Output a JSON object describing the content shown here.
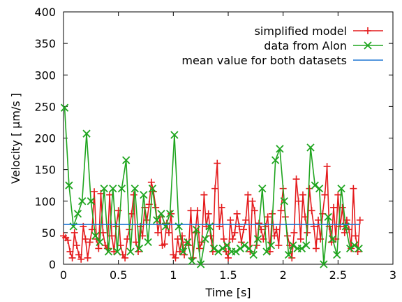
{
  "chart_data": {
    "type": "line",
    "xlabel": "Time [s]",
    "ylabel": "Velocity [ μm/s ]",
    "xlim": [
      0,
      3
    ],
    "ylim": [
      0,
      400
    ],
    "xticks": [
      0,
      0.5,
      1,
      1.5,
      2,
      2.5,
      3
    ],
    "xtick_labels": [
      "0",
      "0.5",
      "1",
      "1.5",
      "2",
      "2.5",
      "3"
    ],
    "yticks": [
      0,
      50,
      100,
      150,
      200,
      250,
      300,
      350,
      400
    ],
    "ytick_labels": [
      "0",
      "50",
      "100",
      "150",
      "200",
      "250",
      "300",
      "350",
      "400"
    ],
    "legend_position": "top-right",
    "grid": false,
    "series": [
      {
        "name": "simplified model",
        "color": "#e41a1c",
        "marker": "plus",
        "x": [
          0.0,
          0.02,
          0.04,
          0.06,
          0.08,
          0.1,
          0.12,
          0.14,
          0.16,
          0.18,
          0.2,
          0.22,
          0.24,
          0.26,
          0.28,
          0.3,
          0.32,
          0.34,
          0.36,
          0.38,
          0.4,
          0.42,
          0.44,
          0.46,
          0.48,
          0.5,
          0.52,
          0.54,
          0.56,
          0.58,
          0.6,
          0.62,
          0.64,
          0.66,
          0.68,
          0.7,
          0.72,
          0.74,
          0.76,
          0.78,
          0.8,
          0.82,
          0.84,
          0.86,
          0.88,
          0.9,
          0.92,
          0.94,
          0.96,
          0.98,
          1.0,
          1.02,
          1.04,
          1.06,
          1.08,
          1.1,
          1.12,
          1.14,
          1.16,
          1.18,
          1.2,
          1.22,
          1.24,
          1.26,
          1.28,
          1.3,
          1.32,
          1.34,
          1.36,
          1.38,
          1.4,
          1.42,
          1.44,
          1.46,
          1.48,
          1.5,
          1.52,
          1.54,
          1.56,
          1.58,
          1.6,
          1.62,
          1.64,
          1.66,
          1.68,
          1.7,
          1.72,
          1.74,
          1.76,
          1.78,
          1.8,
          1.82,
          1.84,
          1.86,
          1.88,
          1.9,
          1.92,
          1.94,
          1.96,
          1.98,
          2.0,
          2.02,
          2.04,
          2.06,
          2.08,
          2.1,
          2.12,
          2.14,
          2.16,
          2.18,
          2.2,
          2.22,
          2.24,
          2.26,
          2.28,
          2.3,
          2.32,
          2.34,
          2.36,
          2.38,
          2.4,
          2.42,
          2.44,
          2.46,
          2.48,
          2.5,
          2.52,
          2.54,
          2.56,
          2.58,
          2.6,
          2.62,
          2.64,
          2.66,
          2.68,
          2.7
        ],
        "values": [
          45,
          42,
          38,
          20,
          10,
          50,
          30,
          15,
          8,
          60,
          40,
          10,
          35,
          55,
          115,
          40,
          25,
          112,
          50,
          30,
          25,
          110,
          45,
          20,
          60,
          85,
          30,
          15,
          10,
          40,
          55,
          80,
          110,
          35,
          20,
          60,
          45,
          90,
          70,
          95,
          130,
          115,
          90,
          50,
          75,
          30,
          32,
          65,
          50,
          80,
          15,
          10,
          40,
          20,
          45,
          15,
          35,
          30,
          85,
          10,
          50,
          85,
          25,
          35,
          110,
          60,
          80,
          45,
          20,
          120,
          160,
          60,
          90,
          40,
          20,
          10,
          70,
          40,
          50,
          80,
          60,
          35,
          55,
          70,
          110,
          20,
          100,
          85,
          30,
          65,
          55,
          40,
          60,
          75,
          20,
          80,
          45,
          55,
          30,
          85,
          120,
          75,
          45,
          30,
          10,
          50,
          135,
          100,
          40,
          110,
          75,
          50,
          120,
          85,
          60,
          25,
          70,
          40,
          80,
          110,
          155,
          60,
          35,
          90,
          40,
          110,
          60,
          90,
          50,
          70,
          55,
          25,
          120,
          45,
          20,
          70
        ]
      },
      {
        "name": "data from Alon",
        "color": "#1fa51f",
        "marker": "cross",
        "x": [
          0.01,
          0.05,
          0.09,
          0.13,
          0.17,
          0.21,
          0.25,
          0.29,
          0.33,
          0.37,
          0.41,
          0.45,
          0.49,
          0.53,
          0.57,
          0.61,
          0.65,
          0.69,
          0.73,
          0.77,
          0.81,
          0.85,
          0.89,
          0.93,
          0.97,
          1.01,
          1.05,
          1.09,
          1.13,
          1.17,
          1.21,
          1.25,
          1.29,
          1.33,
          1.37,
          1.41,
          1.45,
          1.49,
          1.53,
          1.57,
          1.61,
          1.65,
          1.69,
          1.73,
          1.77,
          1.81,
          1.85,
          1.89,
          1.93,
          1.97,
          2.01,
          2.05,
          2.09,
          2.13,
          2.17,
          2.21,
          2.25,
          2.29,
          2.33,
          2.37,
          2.41,
          2.45,
          2.49,
          2.53,
          2.57,
          2.61,
          2.65,
          2.69
        ],
        "values": [
          248,
          125,
          60,
          80,
          100,
          207,
          100,
          45,
          35,
          120,
          20,
          120,
          20,
          120,
          165,
          20,
          120,
          25,
          110,
          35,
          120,
          70,
          80,
          60,
          80,
          205,
          60,
          20,
          35,
          5,
          55,
          0,
          40,
          60,
          25,
          20,
          25,
          30,
          20,
          20,
          25,
          30,
          25,
          15,
          40,
          120,
          20,
          30,
          165,
          183,
          100,
          15,
          30,
          25,
          25,
          30,
          185,
          125,
          120,
          0,
          75,
          40,
          15,
          120,
          60,
          25,
          30,
          25
        ]
      },
      {
        "name": "mean value for both datasets",
        "color": "#1f77d4",
        "marker": "none",
        "x": [
          0.0,
          2.7
        ],
        "values": [
          63,
          63
        ]
      }
    ]
  }
}
